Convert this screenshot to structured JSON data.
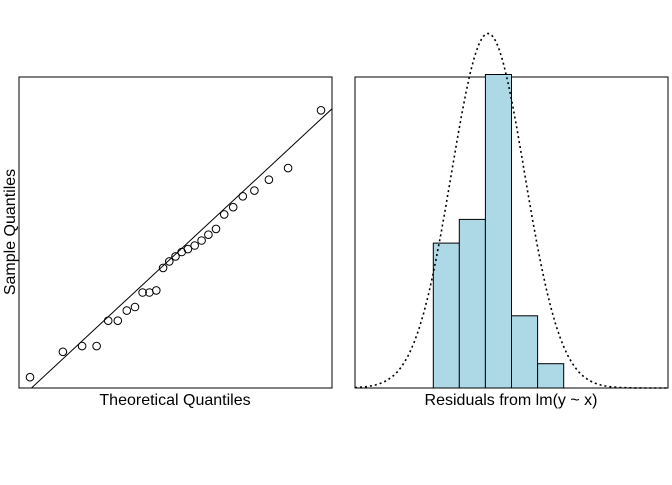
{
  "chart_data": [
    {
      "type": "scatter",
      "title": "",
      "xlabel": "Theoretical Quantiles",
      "ylabel": "Sample Quantiles",
      "axis_ticks": "none",
      "xlim": [
        -2.28,
        2.28
      ],
      "ylim": [
        -2.2,
        2.1
      ],
      "points": {
        "x": [
          -2.12,
          -1.64,
          -1.36,
          -1.15,
          -0.98,
          -0.84,
          -0.71,
          -0.59,
          -0.48,
          -0.38,
          -0.28,
          -0.18,
          -0.09,
          0.0,
          0.09,
          0.18,
          0.28,
          0.38,
          0.48,
          0.59,
          0.71,
          0.84,
          0.98,
          1.15,
          1.36,
          1.64,
          2.12
        ],
        "y": [
          -2.05,
          -1.7,
          -1.62,
          -1.62,
          -1.27,
          -1.27,
          -1.13,
          -1.08,
          -0.88,
          -0.88,
          -0.85,
          -0.54,
          -0.45,
          -0.38,
          -0.32,
          -0.28,
          -0.23,
          -0.16,
          -0.08,
          -0.0,
          0.2,
          0.3,
          0.45,
          0.53,
          0.68,
          0.84,
          1.64
        ]
      },
      "reference_line": {
        "x": [
          -2.28,
          2.28
        ],
        "y": [
          -2.36,
          1.66
        ]
      }
    },
    {
      "type": "histogram",
      "xlabel": "Residuals from lm(y ~ x)",
      "ylabel": "",
      "axis_ticks": "none",
      "xlim": [
        -3.0,
        3.0
      ],
      "ylim": [
        0,
        0.5
      ],
      "bins": [
        {
          "x0": -1.5,
          "x1": -1.0,
          "density": 0.233
        },
        {
          "x0": -1.0,
          "x1": -0.5,
          "density": 0.271
        },
        {
          "x0": -0.5,
          "x1": 0.0,
          "density": 0.504
        },
        {
          "x0": 0.0,
          "x1": 0.5,
          "density": 0.116
        },
        {
          "x0": 0.5,
          "x1": 1.0,
          "density": 0.039
        }
      ],
      "density_curve": {
        "style": "dotted",
        "mean": -0.45,
        "sd": 0.7
      }
    }
  ],
  "colors": {
    "bar_fill": "#add8e6",
    "stroke": "#000000",
    "background": "#ffffff"
  }
}
